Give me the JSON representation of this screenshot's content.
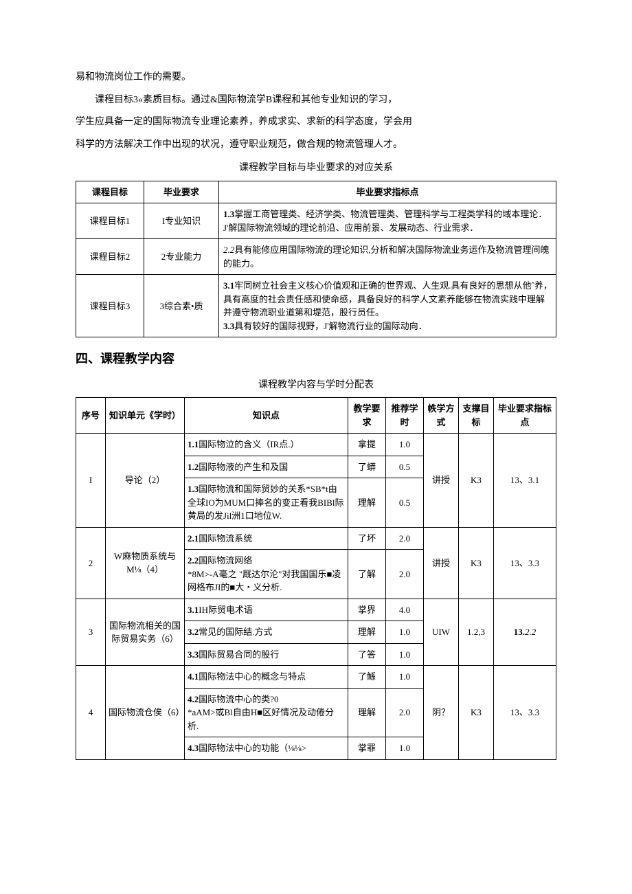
{
  "paragraphs": {
    "p1": "易和物流岗位工作的需要。",
    "p2": "课程目标3«素质目标。通过&国际物流学B课程和其他专业知识的学习，",
    "p3": "学生应具备一定的国际物流专业理论素养，养成求实、求新的科学态度，学会用",
    "p4": "科学的方法解决工作中出现的状况，遵守职业规范，做合规的物流管理人才。"
  },
  "section_heading": "四、课程教学内容",
  "table1": {
    "caption": "课程教学目标与毕业要求的对应关系",
    "headers": {
      "c1": "课程目标",
      "c2": "毕业要求",
      "c3": "毕业要求指标点"
    },
    "rows": [
      {
        "c1": "课程目标1",
        "c2": "I专业知识",
        "c3_lead": "1.3",
        "c3": "掌握工商管理类、经济学类、物流管理类、管理科学与工程类学科的域本理论．J'解国际物流领域的理论前沿、应用前景、发展动态、行业需求．"
      },
      {
        "c1": "课程目标2",
        "c2": "2专业能力",
        "c3_lead": "2.2",
        "c3_lead_italic": true,
        "c3": "具有能修应用国际物流的理论知识,分析和解决国际物流业务运作及物流管理间魄的能力。"
      },
      {
        "c1": "课程目标3",
        "c2": "3综合素•质",
        "c3_lead": "3.1",
        "c3": "牢同树立社会主义核心价值观和正确的世界观、人生观.具有良好的思想从他ˆ养，具有高度的社会责任感和使命感，具备良好的科学人文素养能够在物流实践中理解并遵守物流职业道第和堤范，股行员任。",
        "c3b_lead": "3.3",
        "c3b": "具有较好的国际视野，J'解物流行业的国际动向．"
      }
    ]
  },
  "table2": {
    "caption": "课程教学内容与学时分配表",
    "headers": {
      "idx": "序号",
      "unit": "知识单元《学时）",
      "pt": "知识点",
      "req": "教学要求",
      "hr": "推荐学时",
      "mode": "帙学方式",
      "goal": "支撑目标",
      "ind": "毕业要求指标点"
    },
    "groups": [
      {
        "idx": "I",
        "unit": "导论（2）",
        "mode": "讲授",
        "goal": "K3",
        "ind": "13、3.1",
        "rows": [
          {
            "pt_lead": "1.1",
            "pt": "国际物泣的含义（IR点.）",
            "req": "拿提",
            "hr": "1.0"
          },
          {
            "pt_lead": "1.2",
            "pt": "国际物液的产生和及国",
            "req": "了蟒",
            "hr": "0.5"
          },
          {
            "pt_lead": "1.3",
            "pt": "国际物流和国际贸妙的关系*SB*t由全球IO为MUM口捧名的变正看我BIBl际黄局的发Jil洲1口地位W.",
            "req": "理解",
            "hr": "0.5"
          }
        ]
      },
      {
        "idx": "2",
        "unit": "W麻物质系统与M⅛（4）",
        "mode": "讲授",
        "goal": "K3",
        "ind": "13、3.3",
        "rows": [
          {
            "pt_lead": "2.1",
            "pt": "国际物流系统",
            "req": "了坏",
            "hr": "2.0"
          },
          {
            "pt_lead": "2.2",
            "pt": "国际物流网络\n*8M>-A毫之 \"厩达尔沦\"对我国国乐■凌网格布JI的■大・义分析.",
            "req": "了解",
            "hr": "2.0"
          }
        ]
      },
      {
        "idx": "3",
        "unit": "国际物流相关的国际贸易实务（6）",
        "mode": "UIW",
        "goal": "1.2,3",
        "ind_lead": "13.",
        "ind_italic": "2.2",
        "rows": [
          {
            "pt_lead": "3.1",
            "pt": "IH际贸电术语",
            "req": "掌界",
            "hr": "4.0"
          },
          {
            "pt_lead": "3.2",
            "pt": "常见的国际结.方式",
            "req": "理解",
            "hr": "1.0"
          },
          {
            "pt_lead": "3.3",
            "pt": "国际贸易合同的股行",
            "req": "了答",
            "hr": "1.0"
          }
        ]
      },
      {
        "idx": "4",
        "unit": "国际物流仓俟（6）",
        "mode": "阴？",
        "goal": "K3",
        "ind": "13、3.3",
        "rows": [
          {
            "pt_lead": "4.1",
            "pt": "国际物法中心的概念与特点",
            "req": "了鯀",
            "hr": "1.0"
          },
          {
            "pt_lead": "4.2",
            "pt": "国际物流中心的类?0\n*aAM>或Bl自由H■区好情况及动倦分析.",
            "req": "理解",
            "hr": "2.0"
          },
          {
            "pt_lead": "4.3",
            "pt": "国际物法中心的功能（⅛⅛>",
            "req": "掌罪",
            "hr": "1.0"
          }
        ]
      }
    ]
  }
}
